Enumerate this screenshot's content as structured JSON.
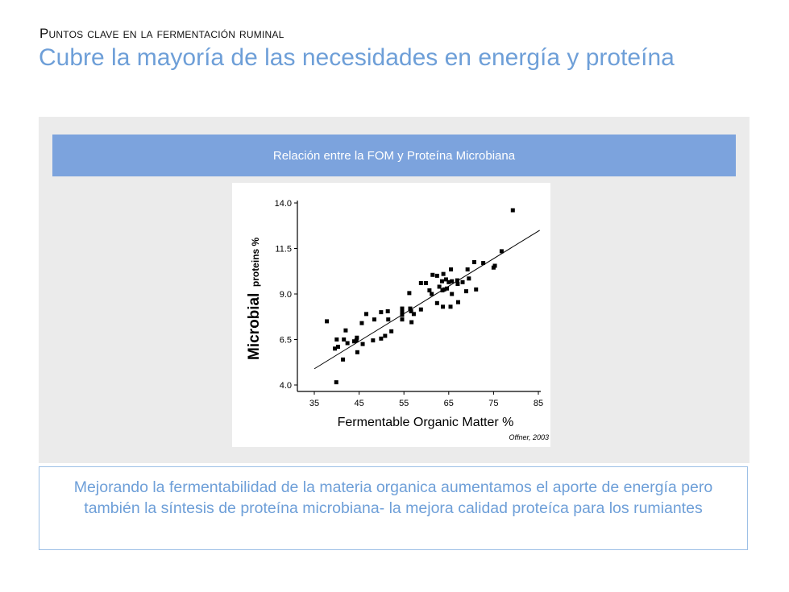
{
  "slide": {
    "subtitle": "Puntos clave en la fermentación ruminal",
    "title": "Cubre la mayoría de las necesidades en energía y proteína",
    "banner": "Relación entre la FOM y Proteína Microbiana",
    "note": "Mejorando la fermentabilidad de la materia organica aumentamos el aporte de energía pero también la síntesis de proteína microbiana- la mejora calidad proteíca para los rumiantes"
  },
  "colors": {
    "accent": "#6e9fd8",
    "banner": "#7ca3dd",
    "panel": "#ebebeb"
  },
  "chart_data": {
    "type": "scatter",
    "title": "",
    "xlabel": "Fermentable Organic Matter %",
    "ylabel_main": "Microbial",
    "ylabel_sub": "proteins %",
    "source": "Offner, 2003",
    "xlim": [
      35,
      85
    ],
    "ylim": [
      4.0,
      14.0
    ],
    "xticks": [
      "35",
      "45",
      "55",
      "65",
      "75",
      "85"
    ],
    "xtick_values": [
      35,
      45,
      55,
      65,
      75,
      85
    ],
    "yticks": [
      "4.0",
      "6.5",
      "9.0",
      "11.5",
      "14.0"
    ],
    "ytick_values": [
      4.0,
      6.5,
      9.0,
      11.5,
      14.0
    ],
    "trendline": {
      "x": [
        35,
        85.3
      ],
      "y": [
        4.89,
        12.5
      ]
    },
    "points": [
      [
        37.8,
        7.5
      ],
      [
        40.0,
        6.5
      ],
      [
        39.6,
        6.0
      ],
      [
        40.3,
        6.1
      ],
      [
        39.9,
        4.15
      ],
      [
        41.4,
        5.4
      ],
      [
        41.6,
        6.5
      ],
      [
        42.0,
        7.0
      ],
      [
        42.4,
        6.3
      ],
      [
        43.9,
        6.4
      ],
      [
        44.5,
        6.6
      ],
      [
        44.4,
        6.45
      ],
      [
        44.6,
        5.8
      ],
      [
        45.6,
        7.4
      ],
      [
        45.8,
        6.25
      ],
      [
        46.6,
        7.9
      ],
      [
        48.1,
        6.45
      ],
      [
        48.4,
        7.6
      ],
      [
        49.9,
        8.0
      ],
      [
        49.9,
        6.55
      ],
      [
        50.8,
        6.7
      ],
      [
        51.4,
        8.05
      ],
      [
        51.5,
        7.6
      ],
      [
        52.2,
        6.95
      ],
      [
        54.6,
        8.2
      ],
      [
        54.6,
        8.0
      ],
      [
        54.6,
        7.85
      ],
      [
        54.6,
        7.6
      ],
      [
        56.2,
        9.05
      ],
      [
        56.4,
        8.2
      ],
      [
        56.6,
        8.05
      ],
      [
        56.7,
        7.45
      ],
      [
        57.2,
        7.9
      ],
      [
        58.8,
        8.15
      ],
      [
        58.8,
        9.6
      ],
      [
        59.9,
        9.6
      ],
      [
        60.7,
        9.2
      ],
      [
        61.2,
        9.0
      ],
      [
        61.4,
        10.05
      ],
      [
        62.4,
        10.0
      ],
      [
        62.4,
        8.5
      ],
      [
        62.9,
        9.4
      ],
      [
        63.5,
        9.7
      ],
      [
        63.8,
        10.1
      ],
      [
        63.6,
        9.2
      ],
      [
        64.0,
        9.25
      ],
      [
        63.7,
        8.3
      ],
      [
        64.4,
        9.8
      ],
      [
        64.6,
        9.3
      ],
      [
        65.0,
        9.65
      ],
      [
        65.5,
        10.35
      ],
      [
        65.7,
        9.7
      ],
      [
        65.4,
        8.3
      ],
      [
        65.7,
        9.0
      ],
      [
        66.9,
        9.75
      ],
      [
        67.0,
        9.55
      ],
      [
        67.1,
        8.55
      ],
      [
        68.1,
        9.65
      ],
      [
        68.9,
        9.15
      ],
      [
        69.2,
        10.35
      ],
      [
        69.5,
        9.85
      ],
      [
        70.7,
        10.75
      ],
      [
        71.1,
        9.25
      ],
      [
        72.7,
        10.7
      ],
      [
        75.0,
        10.45
      ],
      [
        75.3,
        10.55
      ],
      [
        76.8,
        11.35
      ],
      [
        79.3,
        13.6
      ]
    ]
  }
}
